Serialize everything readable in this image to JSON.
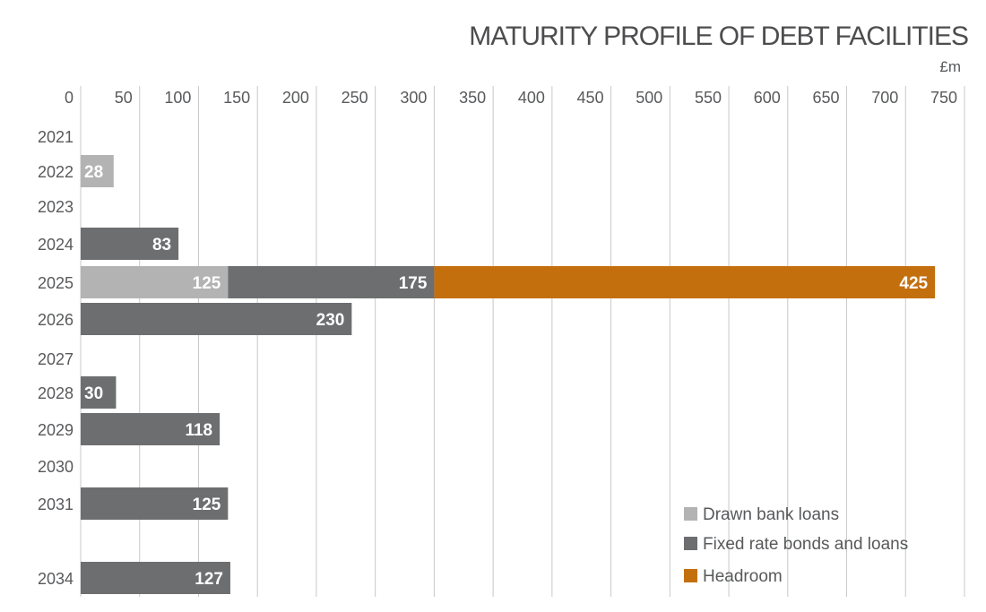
{
  "chart_data": {
    "type": "bar",
    "orientation": "horizontal",
    "stacked": true,
    "title": "MATURITY PROFILE OF DEBT FACILITIES",
    "unit": "£m",
    "xlim": [
      0,
      750
    ],
    "xticks": [
      0,
      50,
      100,
      150,
      200,
      250,
      300,
      350,
      400,
      450,
      500,
      550,
      600,
      650,
      700,
      750
    ],
    "grid": true,
    "legend_position": "bottom-right",
    "categories": [
      "2021",
      "2022",
      "2023",
      "2024",
      "2025",
      "2026",
      "2027",
      "2028",
      "2029",
      "2030",
      "2031",
      "",
      "2034"
    ],
    "series": [
      {
        "name": "Drawn bank loans",
        "color": "#b3b3b3",
        "values": [
          0,
          28,
          0,
          0,
          125,
          0,
          0,
          0,
          0,
          0,
          0,
          0,
          0
        ]
      },
      {
        "name": "Fixed rate bonds and loans",
        "color": "#6d6e70",
        "values": [
          0,
          0,
          0,
          83,
          175,
          230,
          0,
          30,
          118,
          0,
          125,
          0,
          127
        ]
      },
      {
        "name": "Headroom",
        "color": "#c46f0e",
        "values": [
          0,
          0,
          0,
          0,
          425,
          0,
          0,
          0,
          0,
          0,
          0,
          0,
          0
        ]
      }
    ]
  }
}
